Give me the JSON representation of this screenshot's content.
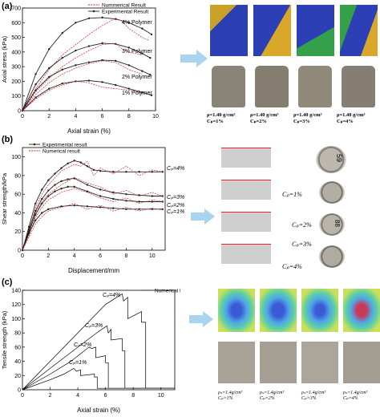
{
  "panels": [
    {
      "label": "(a)",
      "chart_data": {
        "type": "line",
        "xlabel": "Axial strain (%)",
        "ylabel": "Axial stress (kPa)",
        "xlim": [
          0,
          10
        ],
        "ylim": [
          0,
          700
        ],
        "xticks": [
          0,
          2,
          4,
          6,
          8,
          10
        ],
        "yticks": [
          0,
          100,
          200,
          300,
          400,
          500,
          600,
          700
        ],
        "legend": [
          "Nummerical Result",
          "Experimental Result"
        ],
        "legend_position": "top-right",
        "annotations": [
          "4% Polymer",
          "3% Polymer",
          "2% Polymer",
          "1% Polymer"
        ],
        "series": [
          {
            "group": "4% Polymer",
            "kind": "experimental",
            "x": [
              0,
              1,
              2,
              3,
              4,
              5,
              6,
              7,
              8,
              9,
              9.7
            ],
            "y": [
              0,
              250,
              420,
              530,
              600,
              630,
              635,
              625,
              600,
              560,
              520
            ]
          },
          {
            "group": "4% Polymer",
            "kind": "numerical",
            "x": [
              0,
              1,
              2,
              3,
              4,
              5,
              6,
              7,
              7.5,
              8,
              8.5,
              9,
              9.5
            ],
            "y": [
              0,
              150,
              280,
              380,
              450,
              520,
              580,
              630,
              610,
              560,
              530,
              500,
              480
            ]
          },
          {
            "group": "3% Polymer",
            "kind": "experimental",
            "x": [
              0,
              1,
              2,
              3,
              4,
              5,
              6,
              7,
              8,
              9,
              9.6
            ],
            "y": [
              0,
              180,
              290,
              360,
              410,
              440,
              460,
              455,
              430,
              390,
              360
            ]
          },
          {
            "group": "3% Polymer",
            "kind": "numerical",
            "x": [
              0,
              1,
              2,
              3,
              4,
              5,
              6,
              7,
              7.5,
              8,
              9
            ],
            "y": [
              0,
              130,
              220,
              300,
              360,
              410,
              450,
              460,
              420,
              400,
              380
            ]
          },
          {
            "group": "2% Polymer",
            "kind": "experimental",
            "x": [
              0,
              1,
              2,
              3,
              4,
              5,
              6,
              7,
              8,
              9,
              9.6
            ],
            "y": [
              0,
              140,
              230,
              280,
              310,
              330,
              345,
              340,
              310,
              270,
              245
            ]
          },
          {
            "group": "2% Polymer",
            "kind": "numerical",
            "x": [
              0,
              1,
              2,
              3,
              4,
              5,
              6,
              7,
              8,
              9
            ],
            "y": [
              0,
              110,
              190,
              250,
              290,
              320,
              340,
              330,
              280,
              250
            ]
          },
          {
            "group": "1% Polymer",
            "kind": "experimental",
            "x": [
              0,
              1,
              2,
              3,
              4,
              5,
              6,
              7,
              8,
              9,
              9.7
            ],
            "y": [
              0,
              90,
              150,
              185,
              200,
              205,
              195,
              175,
              150,
              125,
              105
            ]
          },
          {
            "group": "1% Polymer",
            "kind": "numerical",
            "x": [
              0,
              1,
              2,
              3,
              4,
              5,
              6,
              7,
              8,
              9
            ],
            "y": [
              0,
              80,
              140,
              175,
              200,
              190,
              160,
              150,
              140,
              120
            ]
          }
        ]
      },
      "photo_captions": [
        {
          "rho": "ρ=1.40 g/cm³",
          "cp": "Cₚ=1%"
        },
        {
          "rho": "ρ=1.40 g/cm³",
          "cp": "Cₚ=2%"
        },
        {
          "rho": "ρ=1.40 g/cm³",
          "cp": "Cₚ=3%"
        },
        {
          "rho": "ρ=1.40 g/cm³",
          "cp": "Cₚ=4%"
        }
      ]
    },
    {
      "label": "(b)",
      "chart_data": {
        "type": "line",
        "xlabel": "Displacement/mm",
        "ylabel": "Shear strength/kPa",
        "xlim": [
          0,
          11
        ],
        "ylim": [
          0,
          110
        ],
        "xticks": [
          0,
          2,
          4,
          6,
          8,
          10
        ],
        "yticks": [
          0,
          20,
          40,
          60,
          80,
          100
        ],
        "legend": [
          "Experimental result",
          "Numerical result"
        ],
        "legend_position": "top-left",
        "annotations": [
          "Cₚ=4%",
          "Cₚ=3%",
          "Cₚ=2%",
          "Cₚ=1%"
        ],
        "series": [
          {
            "group": "Cₚ=4%",
            "kind": "experimental",
            "x": [
              0,
              0.5,
              1,
              1.5,
              2,
              2.5,
              3,
              3.5,
              4,
              4.5,
              5,
              5.5,
              6,
              7,
              8,
              9,
              10,
              10.8
            ],
            "y": [
              0,
              25,
              50,
              65,
              75,
              82,
              88,
              93,
              96,
              94,
              90,
              86,
              85,
              84,
              84,
              84,
              84,
              84
            ]
          },
          {
            "group": "Cₚ=4%",
            "kind": "numerical",
            "x": [
              0,
              0.5,
              1,
              1.5,
              2,
              3,
              4,
              4.5,
              5,
              5.5,
              6,
              7,
              8,
              9,
              10,
              10.8
            ],
            "y": [
              0,
              20,
              45,
              60,
              70,
              85,
              92,
              90,
              95,
              80,
              88,
              82,
              90,
              80,
              86,
              84
            ]
          },
          {
            "group": "Cₚ=3%",
            "kind": "experimental",
            "x": [
              0,
              0.5,
              1,
              1.5,
              2,
              2.5,
              3,
              3.5,
              4,
              5,
              6,
              7,
              8,
              9,
              10,
              10.8
            ],
            "y": [
              0,
              22,
              42,
              55,
              64,
              70,
              74,
              76,
              77,
              70,
              65,
              62,
              60,
              59,
              58,
              58
            ]
          },
          {
            "group": "Cₚ=3%",
            "kind": "numerical",
            "x": [
              0,
              0.5,
              1,
              1.5,
              2,
              3,
              4,
              5,
              6,
              7,
              8,
              9,
              10,
              10.8
            ],
            "y": [
              0,
              18,
              40,
              52,
              60,
              70,
              78,
              72,
              68,
              60,
              64,
              58,
              62,
              58
            ]
          },
          {
            "group": "Cₚ=2%",
            "kind": "experimental",
            "x": [
              0,
              0.5,
              1,
              1.5,
              2,
              2.5,
              3,
              3.5,
              4,
              5,
              6,
              7,
              8,
              9,
              10,
              10.8
            ],
            "y": [
              0,
              20,
              38,
              50,
              58,
              63,
              66,
              68,
              68,
              63,
              58,
              55,
              53,
              52,
              52,
              52
            ]
          },
          {
            "group": "Cₚ=2%",
            "kind": "numerical",
            "x": [
              0,
              0.5,
              1,
              1.5,
              2,
              3,
              4,
              5,
              6,
              7,
              8,
              9,
              10,
              10.8
            ],
            "y": [
              0,
              16,
              35,
              46,
              54,
              62,
              66,
              62,
              56,
              52,
              56,
              50,
              54,
              52
            ]
          },
          {
            "group": "Cₚ=1%",
            "kind": "experimental",
            "x": [
              0,
              0.5,
              1,
              1.5,
              2,
              3,
              4,
              5,
              6,
              7,
              8,
              9,
              10,
              10.8
            ],
            "y": [
              0,
              18,
              32,
              40,
              44,
              47,
              48,
              47,
              46,
              45,
              44,
              44,
              44,
              44
            ]
          },
          {
            "group": "Cₚ=1%",
            "kind": "numerical",
            "x": [
              0,
              0.5,
              1,
              1.5,
              2,
              3,
              4,
              5,
              6,
              7,
              8,
              9,
              10,
              10.8
            ],
            "y": [
              0,
              14,
              28,
              36,
              42,
              46,
              50,
              44,
              48,
              42,
              46,
              42,
              45,
              43
            ]
          }
        ]
      },
      "photo_captions": [
        "Cₚ=1%",
        "Cₚ=2%",
        "Cₚ=3%",
        "Cₚ=4%"
      ],
      "sample_marks": [
        "59",
        "88"
      ]
    },
    {
      "label": "(c)",
      "chart_data": {
        "type": "line",
        "xlabel": "Axial strain (%)",
        "ylabel": "Tensile strength (kPa)",
        "xlim": [
          0,
          11
        ],
        "ylim": [
          0,
          140
        ],
        "xticks": [
          0,
          2,
          4,
          6,
          8,
          10
        ],
        "yticks": [
          0,
          20,
          40,
          60,
          80,
          100,
          120,
          140
        ],
        "legend": [
          "Numerical Result"
        ],
        "legend_position": "top-right",
        "annotations": [
          "Cₚ=4%",
          "Cₚ=3%",
          "Cₚ=2%",
          "Cₚ=1%"
        ],
        "series": [
          {
            "group": "Cₚ=4%",
            "kind": "numerical",
            "x": [
              0,
              2,
              4,
              6,
              7.2,
              7.3,
              7.6,
              7.6,
              8.6,
              8.6,
              8.9,
              8.9,
              11
            ],
            "y": [
              0,
              40,
              80,
              120,
              135,
              125,
              130,
              100,
              110,
              95,
              95,
              2,
              2
            ]
          },
          {
            "group": "Cₚ=3%",
            "kind": "numerical",
            "x": [
              0,
              2,
              4,
              5.5,
              6.1,
              6.2,
              6.4,
              6.4,
              7.2,
              7.2,
              7.4,
              7.4,
              11
            ],
            "y": [
              0,
              30,
              60,
              82,
              90,
              80,
              85,
              70,
              72,
              55,
              55,
              2,
              2
            ]
          },
          {
            "group": "Cₚ=2%",
            "kind": "numerical",
            "x": [
              0,
              2,
              3.5,
              4.8,
              5,
              5.3,
              5.3,
              6,
              6,
              6.2,
              6.2,
              11
            ],
            "y": [
              0,
              22,
              40,
              60,
              58,
              60,
              45,
              48,
              38,
              38,
              2,
              2
            ]
          },
          {
            "group": "Cₚ=1%",
            "kind": "numerical",
            "x": [
              0,
              2,
              3,
              3.7,
              3.9,
              4.2,
              4.2,
              5.2,
              5.2,
              5.4,
              5.4,
              11
            ],
            "y": [
              0,
              14,
              22,
              30,
              26,
              28,
              20,
              22,
              18,
              18,
              2,
              2
            ]
          }
        ]
      },
      "photo_captions": [
        {
          "rho": "ρₛ=1.4g/cm³",
          "cp": "Cₚ=1%"
        },
        {
          "rho": "ρₛ=1.4g/cm³",
          "cp": "Cₚ=2%"
        },
        {
          "rho": "ρₛ=1.4g/cm³",
          "cp": "Cₚ=3%"
        },
        {
          "rho": "ρₛ=1.4g/cm³",
          "cp": "Cₚ=4%"
        }
      ]
    }
  ]
}
